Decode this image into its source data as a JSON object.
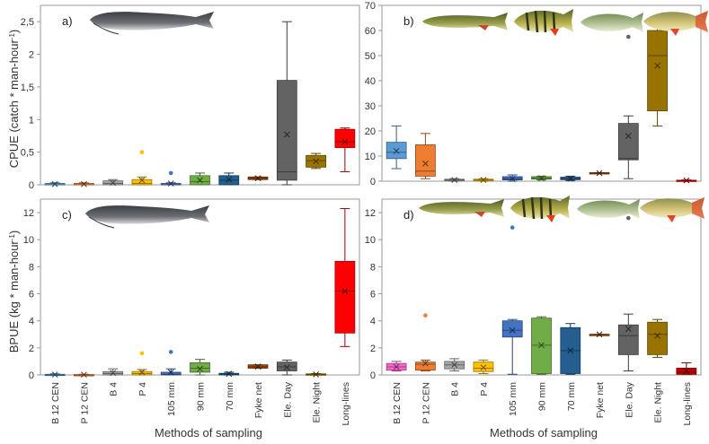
{
  "figure": {
    "y_label_top": "CPUE (catch * man-hour",
    "y_label_bottom": "BPUE (kg * man-hour",
    "y_label_sup": "-1",
    "y_label_close": ")",
    "x_label": "Methods of sampling"
  },
  "colors": {
    "B 12 CEN": "#5b9bd5",
    "P 12 CEN": "#ed7d31",
    "B 4": "#a5a5a5",
    "P 4": "#ffc000",
    "105 mm": "#4472c4",
    "90 mm": "#70ad47",
    "70 mm": "#255e91",
    "Fyke net": "#9e480e",
    "Ele. Day": "#636363",
    "Ele. Night": "#997300",
    "Long-lines": "#ff0000",
    "B 12 CEN b": "#ff66cc",
    "Long-lines b": "#c00000"
  },
  "chart_data": [
    {
      "panel": "a)",
      "type": "box",
      "categories": [
        "B 12 CEN",
        "P 12 CEN",
        "B 4",
        "P 4",
        "105 mm",
        "90 mm",
        "70 mm",
        "Fyke net",
        "Ele. Day",
        "Ele. Night",
        "Long-lines"
      ],
      "ylim": [
        0,
        2.75
      ],
      "yticks": [
        "0",
        "0,5",
        "1",
        "1,5",
        "2",
        "2,5"
      ],
      "ytick_values": [
        0,
        0.5,
        1,
        1.5,
        2,
        2.5
      ],
      "boxes": [
        {
          "min": 0,
          "q1": 0,
          "median": 0,
          "q3": 0.02,
          "max": 0.03,
          "mean": 0.01,
          "outliers": []
        },
        {
          "min": 0,
          "q1": 0,
          "median": 0,
          "q3": 0.02,
          "max": 0.03,
          "mean": 0.01,
          "outliers": []
        },
        {
          "min": 0,
          "q1": 0,
          "median": 0.02,
          "q3": 0.06,
          "max": 0.08,
          "mean": 0.03,
          "outliers": []
        },
        {
          "min": 0,
          "q1": 0,
          "median": 0.02,
          "q3": 0.08,
          "max": 0.12,
          "mean": 0.07,
          "outliers": [
            0.5
          ]
        },
        {
          "min": 0,
          "q1": 0,
          "median": 0,
          "q3": 0.02,
          "max": 0.03,
          "mean": 0.02,
          "outliers": [
            0.18
          ]
        },
        {
          "min": 0,
          "q1": 0,
          "median": 0.05,
          "q3": 0.14,
          "max": 0.18,
          "mean": 0.07,
          "outliers": []
        },
        {
          "min": 0,
          "q1": 0,
          "median": 0.07,
          "q3": 0.14,
          "max": 0.18,
          "mean": 0.08,
          "outliers": []
        },
        {
          "min": 0.08,
          "q1": 0.08,
          "median": 0.1,
          "q3": 0.12,
          "max": 0.12,
          "mean": 0.1,
          "outliers": []
        },
        {
          "min": 0,
          "q1": 0.07,
          "median": 0.2,
          "q3": 1.6,
          "max": 2.5,
          "mean": 0.77,
          "outliers": []
        },
        {
          "min": 0.25,
          "q1": 0.27,
          "median": 0.37,
          "q3": 0.45,
          "max": 0.48,
          "mean": 0.36,
          "outliers": []
        },
        {
          "min": 0.2,
          "q1": 0.57,
          "median": 0.66,
          "q3": 0.85,
          "max": 0.87,
          "mean": 0.66,
          "outliers": []
        }
      ]
    },
    {
      "panel": "b)",
      "type": "box",
      "categories": [
        "B 12 CEN",
        "P 12 CEN",
        "B 4",
        "P 4",
        "105 mm",
        "90 mm",
        "70 mm",
        "Fyke net",
        "Ele. Day",
        "Ele. Night",
        "Long-lines"
      ],
      "ylim": [
        0,
        70
      ],
      "yticks": [
        "0",
        "10",
        "20",
        "30",
        "40",
        "50",
        "60",
        "70"
      ],
      "ytick_values": [
        0,
        10,
        20,
        30,
        40,
        50,
        60,
        70
      ],
      "boxes": [
        {
          "min": 5,
          "q1": 9,
          "median": 11.5,
          "q3": 15.5,
          "max": 22,
          "mean": 12,
          "outliers": []
        },
        {
          "min": 1,
          "q1": 2,
          "median": 4,
          "q3": 14.5,
          "max": 19,
          "mean": 7,
          "outliers": []
        },
        {
          "min": 0,
          "q1": 0.2,
          "median": 0.5,
          "q3": 0.8,
          "max": 1,
          "mean": 0.5,
          "outliers": []
        },
        {
          "min": 0,
          "q1": 0.2,
          "median": 0.5,
          "q3": 0.8,
          "max": 1,
          "mean": 0.5,
          "outliers": []
        },
        {
          "min": 0,
          "q1": 0.5,
          "median": 1,
          "q3": 1.8,
          "max": 2.5,
          "mean": 1,
          "outliers": []
        },
        {
          "min": 0.5,
          "q1": 0.8,
          "median": 1.2,
          "q3": 1.8,
          "max": 2,
          "mean": 1.2,
          "outliers": []
        },
        {
          "min": 0.3,
          "q1": 0.6,
          "median": 1,
          "q3": 1.6,
          "max": 2,
          "mean": 1,
          "outliers": []
        },
        {
          "min": 3,
          "q1": 3,
          "median": 3.2,
          "q3": 3.4,
          "max": 3.4,
          "mean": 3.2,
          "outliers": []
        },
        {
          "min": 1,
          "q1": 8.5,
          "median": 9,
          "q3": 23,
          "max": 26,
          "mean": 18,
          "outliers": [
            57.5
          ]
        },
        {
          "min": 22,
          "q1": 28,
          "median": 50,
          "q3": 60,
          "max": 62.5,
          "mean": 46,
          "outliers": []
        },
        {
          "min": 0,
          "q1": 0,
          "median": 0.2,
          "q3": 0.4,
          "max": 0.5,
          "mean": 0.3,
          "outliers": []
        }
      ]
    },
    {
      "panel": "c)",
      "type": "box",
      "categories": [
        "B 12 CEN",
        "P 12 CEN",
        "B 4",
        "P 4",
        "105 mm",
        "90 mm",
        "70 mm",
        "Fyke net",
        "Ele. Day",
        "Ele. Night",
        "Long-lines"
      ],
      "ylim": [
        0,
        13
      ],
      "yticks": [
        "0",
        "2",
        "4",
        "6",
        "8",
        "10",
        "12"
      ],
      "ytick_values": [
        0,
        2,
        4,
        6,
        8,
        10,
        12
      ],
      "boxes": [
        {
          "min": 0,
          "q1": 0,
          "median": 0,
          "q3": 0.05,
          "max": 0.08,
          "mean": 0.03,
          "outliers": []
        },
        {
          "min": 0,
          "q1": 0,
          "median": 0,
          "q3": 0.03,
          "max": 0.05,
          "mean": 0.02,
          "outliers": []
        },
        {
          "min": 0,
          "q1": 0,
          "median": 0.1,
          "q3": 0.25,
          "max": 0.45,
          "mean": 0.15,
          "outliers": []
        },
        {
          "min": 0,
          "q1": 0,
          "median": 0.1,
          "q3": 0.25,
          "max": 0.4,
          "mean": 0.2,
          "outliers": [
            1.6
          ]
        },
        {
          "min": 0,
          "q1": 0,
          "median": 0.05,
          "q3": 0.2,
          "max": 0.45,
          "mean": 0.2,
          "outliers": [
            1.7
          ]
        },
        {
          "min": 0,
          "q1": 0.2,
          "median": 0.5,
          "q3": 0.9,
          "max": 1.15,
          "mean": 0.45,
          "outliers": []
        },
        {
          "min": 0,
          "q1": 0,
          "median": 0.05,
          "q3": 0.12,
          "max": 0.2,
          "mean": 0.08,
          "outliers": []
        },
        {
          "min": 0.5,
          "q1": 0.5,
          "median": 0.6,
          "q3": 0.75,
          "max": 0.75,
          "mean": 0.62,
          "outliers": []
        },
        {
          "min": 0,
          "q1": 0.3,
          "median": 0.6,
          "q3": 0.95,
          "max": 1.1,
          "mean": 0.55,
          "outliers": []
        },
        {
          "min": 0,
          "q1": 0,
          "median": 0.03,
          "q3": 0.08,
          "max": 0.1,
          "mean": 0.04,
          "outliers": []
        },
        {
          "min": 2.1,
          "q1": 3.1,
          "median": 6.2,
          "q3": 8.4,
          "max": 12.3,
          "mean": 6.2,
          "outliers": []
        }
      ]
    },
    {
      "panel": "d)",
      "type": "box",
      "categories": [
        "B 12 CEN",
        "P 12 CEN",
        "B 4",
        "P 4",
        "105 mm",
        "90 mm",
        "70 mm",
        "Fyke net",
        "Ele. Day",
        "Ele. Night",
        "Long-lines"
      ],
      "ylim": [
        0,
        13
      ],
      "yticks": [
        "0",
        "2",
        "4",
        "6",
        "8",
        "10",
        "12"
      ],
      "ytick_values": [
        0,
        2,
        4,
        6,
        8,
        10,
        12
      ],
      "boxes": [
        {
          "min": 0.3,
          "q1": 0.35,
          "median": 0.6,
          "q3": 0.85,
          "max": 1,
          "mean": 0.6,
          "outliers": []
        },
        {
          "min": 0.3,
          "q1": 0.35,
          "median": 0.8,
          "q3": 0.95,
          "max": 1.1,
          "mean": 0.85,
          "outliers": [
            4.4
          ]
        },
        {
          "min": 0.3,
          "q1": 0.45,
          "median": 0.75,
          "q3": 1,
          "max": 1.2,
          "mean": 0.75,
          "outliers": []
        },
        {
          "min": 0.1,
          "q1": 0.25,
          "median": 0.5,
          "q3": 0.95,
          "max": 1.1,
          "mean": 0.55,
          "outliers": []
        },
        {
          "min": 0.05,
          "q1": 2.8,
          "median": 3.3,
          "q3": 4,
          "max": 4.1,
          "mean": 3.3,
          "outliers": [
            10.9
          ]
        },
        {
          "min": 0.05,
          "q1": 0.1,
          "median": 2.2,
          "q3": 4.2,
          "max": 4.3,
          "mean": 2.2,
          "outliers": []
        },
        {
          "min": 0.05,
          "q1": 0.1,
          "median": 1.8,
          "q3": 3.5,
          "max": 3.8,
          "mean": 1.8,
          "outliers": []
        },
        {
          "min": 2.95,
          "q1": 2.95,
          "median": 3,
          "q3": 3,
          "max": 3,
          "mean": 3,
          "outliers": []
        },
        {
          "min": 0.3,
          "q1": 1.5,
          "median": 2.9,
          "q3": 3.7,
          "max": 4.5,
          "mean": 3.4,
          "outliers": [
            11.6
          ]
        },
        {
          "min": 1.3,
          "q1": 1.5,
          "median": 3,
          "q3": 3.9,
          "max": 4.1,
          "mean": 2.9,
          "outliers": []
        },
        {
          "min": 0.05,
          "q1": 0.05,
          "median": 0.2,
          "q3": 0.5,
          "max": 0.9,
          "mean": 0.3,
          "outliers": []
        }
      ]
    }
  ]
}
